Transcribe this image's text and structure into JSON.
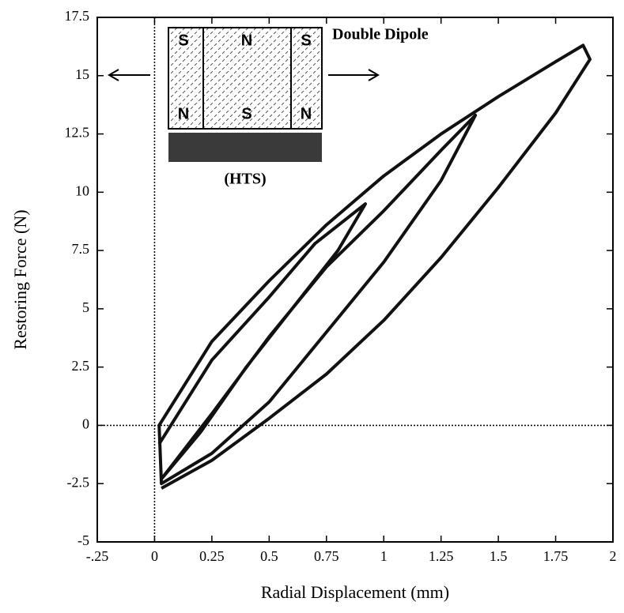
{
  "chart_data": {
    "type": "line",
    "x_label": "Radial Displacement (mm)",
    "y_label": "Restoring Force (N)",
    "annotations": [
      "Double Dipole",
      "(HTS)",
      "S",
      "N",
      "S",
      "N",
      "S",
      "N"
    ],
    "color": "#111111",
    "xlim": [
      -0.25,
      2
    ],
    "ylim": [
      -5,
      17.5
    ],
    "xticks": [
      {
        "value": -0.25,
        "label": "-.25"
      },
      0,
      0.25,
      0.5,
      0.75,
      1,
      1.25,
      1.5,
      1.75,
      2
    ],
    "yticks": [
      -5,
      -2.5,
      0,
      2.5,
      5,
      7.5,
      10,
      12.5,
      15,
      17.5
    ],
    "zero_lines": true,
    "x": [
      0.02,
      0.25,
      0.5,
      0.7,
      0.92,
      0.8,
      0.6,
      0.4,
      0.2,
      0.03,
      0.25,
      0.5,
      0.75,
      1,
      1.25,
      1.4,
      1.25,
      1,
      0.75,
      0.5,
      0.25,
      0.03,
      0.02,
      0.25,
      0.5,
      0.75,
      1,
      1.25,
      1.5,
      1.75,
      1.87,
      1.9,
      1.75,
      1.5,
      1.25,
      1,
      0.75,
      0.5,
      0.25,
      0.03
    ],
    "values": [
      -0.8,
      2.8,
      5.5,
      7.8,
      9.5,
      7.5,
      5,
      2.5,
      -0.3,
      -2.3,
      0.5,
      3.8,
      6.8,
      9.2,
      11.8,
      13.3,
      10.5,
      7,
      4,
      1,
      -1.2,
      -2.5,
      0,
      3.6,
      6.2,
      8.6,
      10.7,
      12.5,
      14.1,
      15.6,
      16.3,
      15.7,
      13.4,
      10.2,
      7.2,
      4.5,
      2.2,
      0.3,
      -1.5,
      -2.7
    ]
  }
}
